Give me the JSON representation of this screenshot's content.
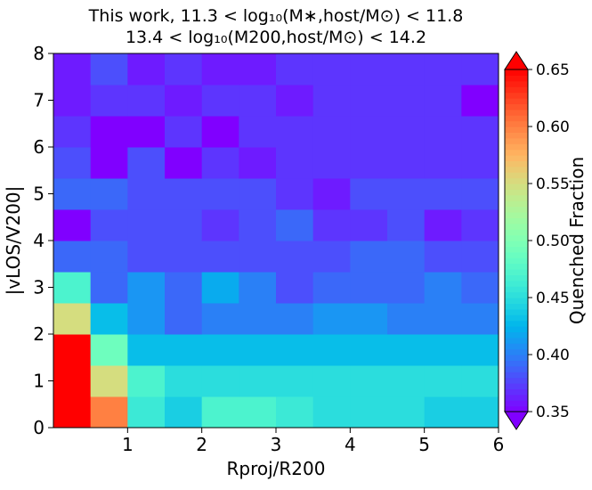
{
  "chart_data": {
    "type": "heatmap",
    "title": "This work, 11.3 < log₁₀(M∗,host/M⊙) < 11.8",
    "subtitle": "13.4 < log₁₀(M200,host/M⊙) < 14.2",
    "x_label": "Rproj/R200",
    "y_label": "|vLOS/V200|",
    "colorbar_label": "Quenched Fraction",
    "colormap": "rainbow",
    "clim": [
      0.35,
      0.65
    ],
    "cbar_extend": "both",
    "cticks": [
      {
        "value": 0.35,
        "label": "0.35"
      },
      {
        "value": 0.4,
        "label": "0.40"
      },
      {
        "value": 0.45,
        "label": "0.45"
      },
      {
        "value": 0.5,
        "label": "0.50"
      },
      {
        "value": 0.55,
        "label": "0.55"
      },
      {
        "value": 0.6,
        "label": "0.60"
      },
      {
        "value": 0.65,
        "label": "0.65"
      }
    ],
    "xlim": [
      0,
      6
    ],
    "ylim": [
      0,
      8
    ],
    "xticks": [
      1,
      2,
      3,
      4,
      5,
      6
    ],
    "yticks": [
      0,
      1,
      2,
      3,
      4,
      5,
      6,
      7,
      8
    ],
    "xbins": [
      0,
      0.5,
      1,
      1.5,
      2,
      2.5,
      3,
      3.5,
      4,
      4.5,
      5,
      5.5,
      6
    ],
    "ybins": [
      0,
      0.667,
      1.333,
      2,
      2.667,
      3.333,
      4,
      4.667,
      5.333,
      6,
      6.667,
      7.333,
      8
    ],
    "z": [
      [
        0.65,
        0.6,
        0.46,
        0.44,
        0.47,
        0.47,
        0.46,
        0.45,
        0.45,
        0.45,
        0.44,
        0.44
      ],
      [
        0.65,
        0.55,
        0.47,
        0.45,
        0.45,
        0.45,
        0.45,
        0.45,
        0.45,
        0.45,
        0.45,
        0.45
      ],
      [
        0.65,
        0.49,
        0.43,
        0.43,
        0.43,
        0.43,
        0.43,
        0.43,
        0.43,
        0.43,
        0.43,
        0.43
      ],
      [
        0.55,
        0.43,
        0.41,
        0.39,
        0.4,
        0.4,
        0.4,
        0.41,
        0.41,
        0.4,
        0.4,
        0.4
      ],
      [
        0.47,
        0.39,
        0.41,
        0.39,
        0.42,
        0.4,
        0.38,
        0.39,
        0.39,
        0.39,
        0.4,
        0.39
      ],
      [
        0.39,
        0.39,
        0.38,
        0.38,
        0.38,
        0.38,
        0.38,
        0.38,
        0.39,
        0.39,
        0.38,
        0.38
      ],
      [
        0.35,
        0.38,
        0.38,
        0.38,
        0.37,
        0.38,
        0.39,
        0.37,
        0.37,
        0.38,
        0.36,
        0.37
      ],
      [
        0.39,
        0.39,
        0.38,
        0.38,
        0.38,
        0.38,
        0.37,
        0.36,
        0.38,
        0.38,
        0.38,
        0.38
      ],
      [
        0.38,
        0.35,
        0.38,
        0.35,
        0.37,
        0.36,
        0.37,
        0.37,
        0.37,
        0.37,
        0.37,
        0.37
      ],
      [
        0.37,
        0.35,
        0.35,
        0.37,
        0.35,
        0.37,
        0.37,
        0.37,
        0.37,
        0.37,
        0.37,
        0.37
      ],
      [
        0.36,
        0.37,
        0.37,
        0.36,
        0.37,
        0.37,
        0.36,
        0.37,
        0.37,
        0.37,
        0.37,
        0.35
      ],
      [
        0.36,
        0.38,
        0.36,
        0.37,
        0.36,
        0.36,
        0.37,
        0.37,
        0.37,
        0.37,
        0.37,
        0.37
      ]
    ]
  }
}
